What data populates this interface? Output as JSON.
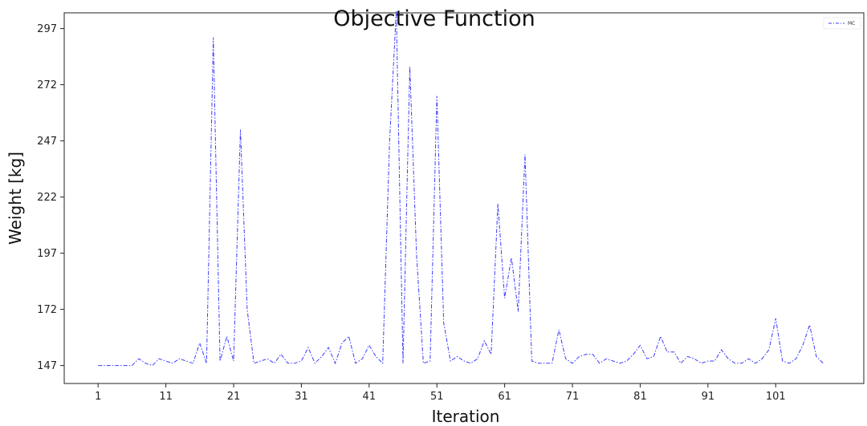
{
  "chart_data": {
    "type": "line",
    "title": "Objective Function",
    "xlabel": "Iteration",
    "ylabel": "Weight [kg]",
    "xlim": [
      -4,
      114
    ],
    "ylim": [
      139,
      304
    ],
    "xticks": [
      1,
      11,
      21,
      31,
      41,
      51,
      61,
      71,
      81,
      91,
      101
    ],
    "yticks": [
      147,
      172,
      197,
      222,
      247,
      272,
      297
    ],
    "grid": false,
    "legend_position": "top-right",
    "line_color": "#3b3bff",
    "series": [
      {
        "name": "MC",
        "x": [
          1,
          2,
          3,
          4,
          5,
          6,
          7,
          8,
          9,
          10,
          11,
          12,
          13,
          14,
          15,
          16,
          17,
          18,
          19,
          20,
          21,
          22,
          23,
          24,
          25,
          26,
          27,
          28,
          29,
          30,
          31,
          32,
          33,
          34,
          35,
          36,
          37,
          38,
          39,
          40,
          41,
          42,
          43,
          44,
          45,
          46,
          47,
          48,
          49,
          50,
          51,
          52,
          53,
          54,
          55,
          56,
          57,
          58,
          59,
          60,
          61,
          62,
          63,
          64,
          65,
          66,
          67,
          68,
          69,
          70,
          71,
          72,
          73,
          74,
          75,
          76,
          77,
          78,
          79,
          80,
          81,
          82,
          83,
          84,
          85,
          86,
          87,
          88,
          89,
          90,
          91,
          92,
          93,
          94,
          95,
          96,
          97,
          98,
          99,
          100,
          101,
          102,
          103,
          104,
          105,
          106,
          107,
          108
        ],
        "y": [
          147,
          147,
          147,
          147,
          147,
          147,
          150,
          148,
          147,
          150,
          149,
          148,
          150,
          149,
          148,
          157,
          148,
          293,
          149,
          160,
          149,
          252,
          172,
          148,
          149,
          150,
          148,
          152,
          148,
          148,
          149,
          155,
          148,
          151,
          155,
          148,
          157,
          160,
          148,
          150,
          156,
          151,
          148,
          246,
          305,
          148,
          280,
          196,
          148,
          149,
          267,
          166,
          149,
          151,
          149,
          148,
          150,
          158,
          152,
          219,
          177,
          195,
          171,
          241,
          149,
          148,
          148,
          148,
          163,
          150,
          148,
          151,
          152,
          152,
          148,
          150,
          149,
          148,
          149,
          152,
          156,
          150,
          151,
          160,
          153,
          153,
          148,
          151,
          150,
          148,
          149,
          149,
          154,
          150,
          148,
          148,
          150,
          148,
          150,
          154,
          168,
          149,
          148,
          150,
          156,
          165,
          151,
          148
        ]
      }
    ]
  }
}
